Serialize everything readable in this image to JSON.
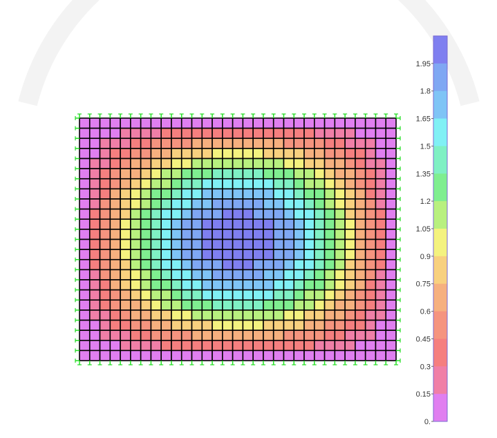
{
  "chart_data": {
    "type": "heatmap",
    "title": "",
    "legend": {
      "placement": "right",
      "tick_labels": [
        "1.95",
        "1.8",
        "1.65",
        "1.5",
        "1.35",
        "1.2",
        "1.05",
        "0.9",
        "0.75",
        "0.6",
        "0.45",
        "0.3",
        "0.15",
        "0."
      ],
      "band_colors": [
        "#7f7ff0",
        "#7fa7f3",
        "#7fc4f6",
        "#80f0f5",
        "#7ff0c4",
        "#7fee90",
        "#b8f07f",
        "#f4f27f",
        "#f8d07f",
        "#f6b07f",
        "#f5947f",
        "#f57f7f",
        "#f07fa7",
        "#e07ff0"
      ]
    },
    "field": {
      "columns": 31,
      "rows": 24,
      "min_value": 0.0,
      "max_value": 2.0,
      "peak_location": "center",
      "description_value_at_edges": 0.0
    },
    "colors": {
      "mesh_lines": "#000000",
      "supports": "#22dd22"
    }
  }
}
